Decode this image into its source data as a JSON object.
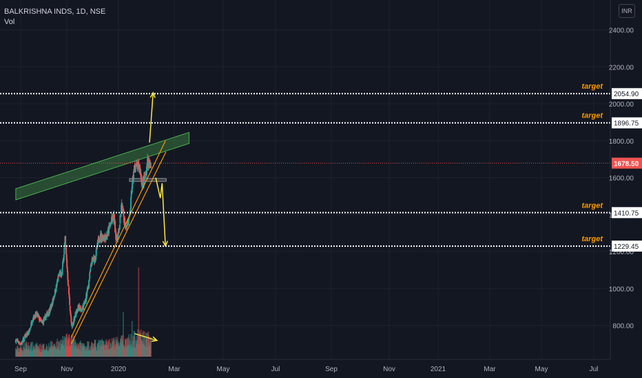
{
  "header": {
    "symbol": "BALKRISHNA INDS, 1D, NSE",
    "indicator": "Vol",
    "currency": "INR"
  },
  "chart_data": {
    "type": "candlestick",
    "title": "BALKRISHNA INDS, 1D, NSE",
    "y_ticks": [
      800,
      1000,
      1200,
      1400,
      1600,
      1800,
      2000,
      2200,
      2400
    ],
    "y_tick_labels": [
      "800.00",
      "1000.00",
      "1200.00",
      "1400.00",
      "1600.00",
      "1800.00",
      "2000.00",
      "2200.00",
      "2400.00"
    ],
    "x_ticks": [
      "Sep",
      "Nov",
      "2020",
      "Mar",
      "May",
      "Jul",
      "Sep",
      "Nov",
      "2021",
      "Mar",
      "May",
      "Jul"
    ],
    "grid": true,
    "last_price": 1678.5,
    "last_price_label": "1678.50",
    "target_label": "target",
    "levels": [
      {
        "value": 2054.9,
        "label": "2054.90",
        "target": true
      },
      {
        "value": 1896.75,
        "label": "1896.75",
        "target": true
      },
      {
        "value": 1410.75,
        "label": "1410.75",
        "target": true
      },
      {
        "value": 1229.45,
        "label": "1229.45",
        "target": true
      }
    ],
    "price_path": [
      [
        "2019-08-20",
        720
      ],
      [
        "2019-09-10",
        700
      ],
      [
        "2019-09-25",
        740
      ],
      [
        "2019-10-10",
        760
      ],
      [
        "2019-10-25",
        840
      ],
      [
        "2019-11-10",
        860
      ],
      [
        "2019-11-30",
        810
      ],
      [
        "2019-12-20",
        860
      ],
      [
        "2020-01-05",
        900
      ],
      [
        "2020-01-25",
        1010
      ],
      [
        "2020-02-05",
        1080
      ],
      [
        "2020-02-15",
        1070
      ],
      [
        "2020-02-28",
        1260
      ],
      [
        "2020-03-05",
        1150
      ],
      [
        "2020-03-15",
        950
      ],
      [
        "2020-03-25",
        780
      ],
      [
        "2020-04-05",
        850
      ],
      [
        "2020-04-20",
        900
      ],
      [
        "2020-05-01",
        880
      ],
      [
        "2020-05-15",
        920
      ],
      [
        "2020-05-28",
        1010
      ],
      [
        "2020-06-10",
        1140
      ],
      [
        "2020-06-25",
        1170
      ],
      [
        "2020-07-10",
        1280
      ],
      [
        "2020-07-25",
        1280
      ],
      [
        "2020-08-10",
        1290
      ],
      [
        "2020-08-25",
        1360
      ],
      [
        "2020-09-05",
        1390
      ],
      [
        "2020-09-15",
        1260
      ],
      [
        "2020-09-25",
        1310
      ],
      [
        "2020-10-05",
        1450
      ],
      [
        "2020-10-20",
        1340
      ],
      [
        "2020-11-05",
        1370
      ],
      [
        "2020-11-15",
        1560
      ],
      [
        "2020-11-25",
        1660
      ],
      [
        "2020-12-05",
        1660
      ],
      [
        "2020-12-15",
        1650
      ],
      [
        "2020-12-25",
        1560
      ],
      [
        "2021-01-05",
        1600
      ],
      [
        "2021-01-15",
        1700
      ],
      [
        "2021-01-22",
        1650
      ],
      [
        "2021-01-28",
        1678.5
      ]
    ],
    "volume_path": [
      [
        "2019-08-20",
        0.08
      ],
      [
        "2019-10-01",
        0.12
      ],
      [
        "2019-12-01",
        0.1
      ],
      [
        "2020-02-01",
        0.14
      ],
      [
        "2020-03-15",
        0.18
      ],
      [
        "2020-05-01",
        0.12
      ],
      [
        "2020-07-01",
        0.13
      ],
      [
        "2020-09-01",
        0.15
      ],
      [
        "2020-11-01",
        0.17
      ],
      [
        "2020-12-15",
        0.22
      ],
      [
        "2021-01-28",
        0.18
      ]
    ],
    "volume_spikes": [
      [
        "2020-03-10",
        0.22
      ],
      [
        "2020-10-12",
        0.5
      ],
      [
        "2020-12-10",
        1.0
      ],
      [
        "2020-11-15",
        0.4
      ]
    ],
    "annotations": {
      "green_channel": {
        "from": [
          "2019-08-20",
          1510
        ],
        "to": [
          "2021-06-25",
          1815
        ],
        "thickness_price": 60,
        "color": "#4caf50"
      },
      "orange_channel": [
        {
          "from": [
            "2020-03-23",
            735
          ],
          "to": [
            "2021-03-25",
            1800
          ]
        },
        {
          "from": [
            "2020-03-23",
            700
          ],
          "to": [
            "2021-03-27",
            1740
          ]
        }
      ],
      "gray_box": {
        "from": [
          "2020-11-05",
          1580
        ],
        "to": [
          "2021-03-28",
          1595
        ]
      },
      "up_arrow": {
        "from": [
          "2021-01-22",
          1790
        ],
        "to": [
          "2021-02-05",
          2060
        ]
      },
      "down_arrow": [
        [
          "2021-02-15",
          1600
        ],
        [
          "2021-03-05",
          1490
        ],
        [
          "2021-03-12",
          1570
        ],
        [
          "2021-03-25",
          1230
        ]
      ],
      "volume_arrow": {
        "from": [
          "2020-11-25",
          0.55
        ],
        "to": [
          "2021-02-20",
          0.4
        ]
      }
    },
    "colors": {
      "up": "#26a69a",
      "down": "#ef5350",
      "annotation": "#ffeb3b",
      "channel": "#ff9800",
      "target": "#ff9800",
      "price_tag": "#ef5350",
      "axis_text": "#b2b5be"
    }
  }
}
